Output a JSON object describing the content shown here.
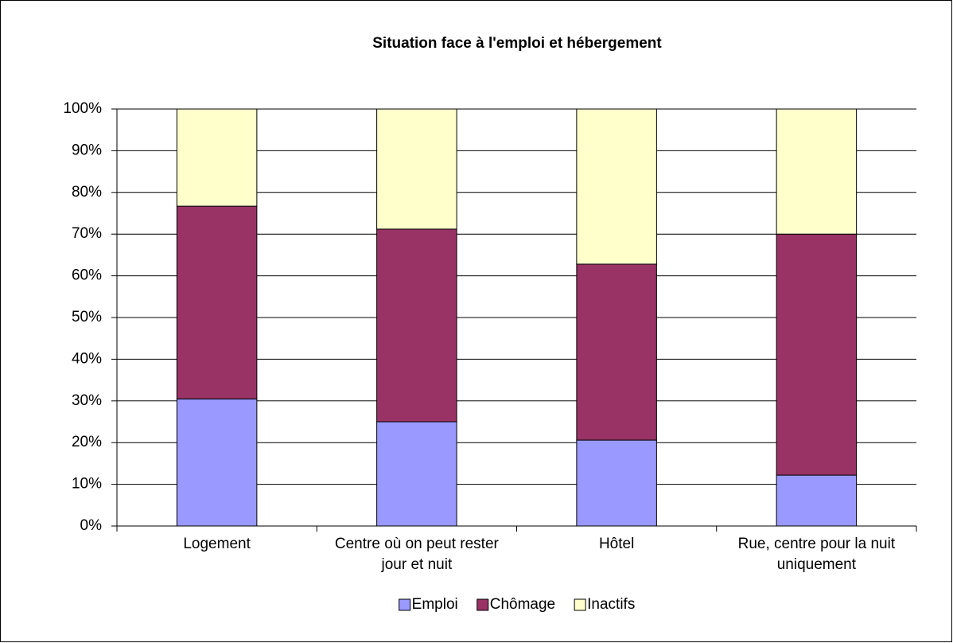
{
  "chart_data": {
    "type": "stacked_bar",
    "title": "Situation face à l'emploi et hébergement",
    "categories": [
      "Logement",
      "Centre où on peut rester jour et nuit",
      "Hôtel",
      "Rue, centre pour la nuit uniquement"
    ],
    "series": [
      {
        "name": "Emploi",
        "color": "#9999ff",
        "values": [
          30.5,
          25.0,
          20.6,
          12.2
        ]
      },
      {
        "name": "Chômage",
        "color": "#993366",
        "values": [
          46.2,
          46.2,
          42.2,
          57.8
        ]
      },
      {
        "name": "Inactifs",
        "color": "#ffffcc",
        "values": [
          23.3,
          28.8,
          37.2,
          30.0
        ]
      }
    ],
    "ylim": [
      0,
      100
    ],
    "yticks": [
      {
        "value": 0,
        "label": "0%"
      },
      {
        "value": 10,
        "label": "10%"
      },
      {
        "value": 20,
        "label": "20%"
      },
      {
        "value": 30,
        "label": "30%"
      },
      {
        "value": 40,
        "label": "40%"
      },
      {
        "value": 50,
        "label": "50%"
      },
      {
        "value": 60,
        "label": "60%"
      },
      {
        "value": 70,
        "label": "70%"
      },
      {
        "value": 80,
        "label": "80%"
      },
      {
        "value": 90,
        "label": "90%"
      },
      {
        "value": 100,
        "label": "100%"
      }
    ],
    "grid": true,
    "legend": "bottom"
  }
}
